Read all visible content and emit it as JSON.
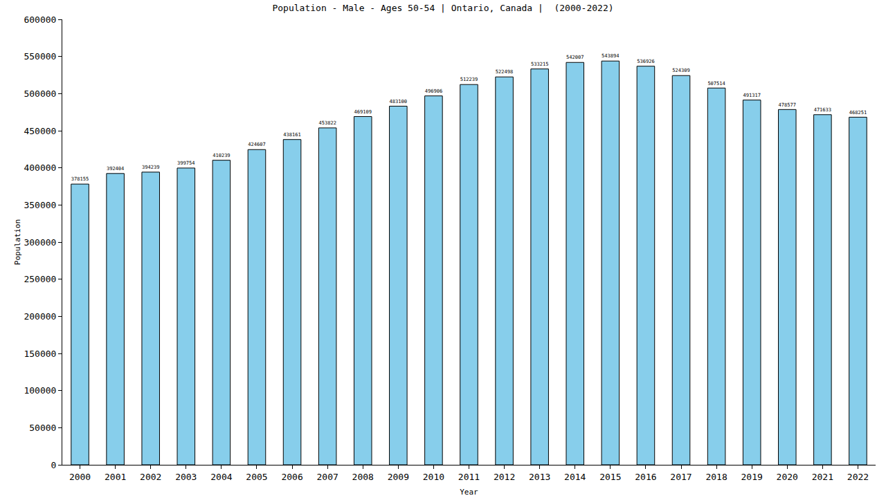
{
  "chart_data": {
    "type": "bar",
    "title": "Population - Male - Ages 50-54 | Ontario, Canada |  (2000-2022)",
    "x_label": "Year",
    "y_label": "Population",
    "categories": [
      "2000",
      "2001",
      "2002",
      "2003",
      "2004",
      "2005",
      "2006",
      "2007",
      "2008",
      "2009",
      "2010",
      "2011",
      "2012",
      "2013",
      "2014",
      "2015",
      "2016",
      "2017",
      "2018",
      "2019",
      "2020",
      "2021",
      "2022"
    ],
    "values": [
      378155,
      392404,
      394239,
      399754,
      410239,
      424607,
      438161,
      453822,
      469109,
      483100,
      496906,
      512239,
      522498,
      533215,
      542007,
      543894,
      536926,
      524309,
      507514,
      491317,
      478577,
      471633,
      468251
    ],
    "color": "#87ceeb",
    "ylim": [
      0,
      600000
    ],
    "yticks": [
      0,
      50000,
      100000,
      150000,
      200000,
      250000,
      300000,
      350000,
      400000,
      450000,
      500000,
      550000,
      600000
    ],
    "grid": false,
    "data_labels": true
  }
}
